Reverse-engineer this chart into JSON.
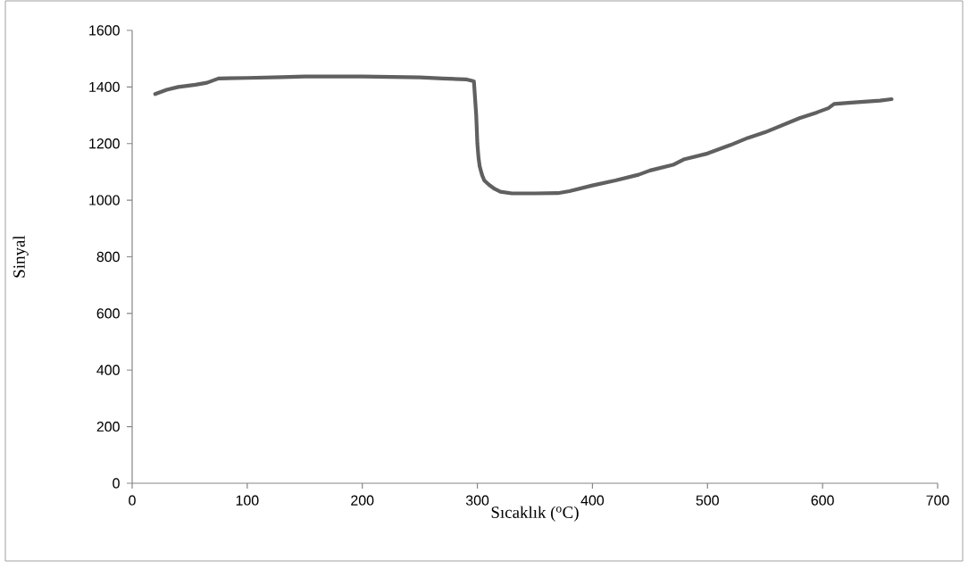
{
  "chart_data": {
    "type": "line",
    "xlabel": "Sıcaklık ($^{o}$C)",
    "ylabel": "Sinyal",
    "x": [
      20,
      30,
      40,
      55,
      65,
      75,
      100,
      130,
      150,
      200,
      250,
      270,
      290,
      297,
      299,
      300,
      301,
      302,
      304,
      306,
      310,
      315,
      320,
      330,
      350,
      370,
      380,
      390,
      400,
      420,
      440,
      450,
      470,
      480,
      500,
      510,
      520,
      535,
      550,
      565,
      580,
      595,
      605,
      610,
      625,
      650,
      660
    ],
    "series": [
      {
        "color": "#606060",
        "values": [
          1375,
          1390,
          1400,
          1408,
          1415,
          1430,
          1432,
          1435,
          1437,
          1437,
          1434,
          1430,
          1427,
          1420,
          1300,
          1200,
          1150,
          1120,
          1090,
          1070,
          1055,
          1040,
          1030,
          1024,
          1024,
          1025,
          1032,
          1042,
          1052,
          1070,
          1090,
          1105,
          1125,
          1145,
          1165,
          1180,
          1195,
          1220,
          1240,
          1265,
          1290,
          1310,
          1325,
          1340,
          1345,
          1352,
          1357
        ]
      }
    ],
    "xlim": [
      0,
      700
    ],
    "ylim": [
      0,
      1600
    ],
    "xticks": [
      0,
      100,
      200,
      300,
      400,
      500,
      600,
      700
    ],
    "yticks": [
      0,
      200,
      400,
      600,
      800,
      1000,
      1200,
      1400,
      1600
    ],
    "grid": false,
    "marker": "none",
    "line_style": "solid"
  }
}
